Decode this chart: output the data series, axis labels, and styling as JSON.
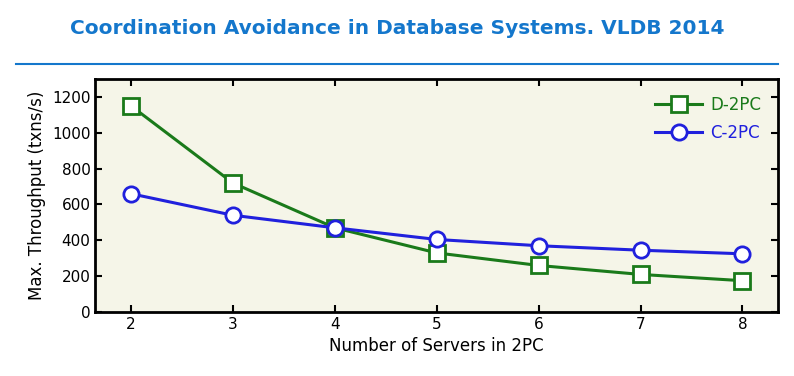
{
  "title": "Coordination Avoidance in Database Systems. VLDB 2014",
  "title_color": "#1477cc",
  "title_fontsize": 14.5,
  "xlabel": "Number of Servers in 2PC",
  "ylabel": "Max. Throughput (txns/s)",
  "x": [
    2,
    3,
    4,
    5,
    6,
    7,
    8
  ],
  "d2pc_y": [
    1150,
    720,
    470,
    330,
    260,
    210,
    175
  ],
  "c2pc_y": [
    660,
    540,
    470,
    405,
    370,
    345,
    325
  ],
  "d2pc_color": "#1a7a1a",
  "c2pc_color": "#2020dd",
  "ylim": [
    0,
    1300
  ],
  "yticks": [
    0,
    200,
    400,
    600,
    800,
    1000,
    1200
  ],
  "xticks": [
    2,
    3,
    4,
    5,
    6,
    7,
    8
  ],
  "legend_labels": [
    "D-2PC",
    "C-2PC"
  ],
  "background_color": "#ffffff",
  "plot_bg_color": "#f5f5e8",
  "axes_color": "#000000",
  "underline_color": "#1477cc",
  "label_fontsize": 12,
  "tick_fontsize": 11,
  "legend_fontsize": 12,
  "linewidth": 2.2,
  "markersize": 11,
  "marker_edge_width": 2.0,
  "spine_linewidth": 2.0
}
